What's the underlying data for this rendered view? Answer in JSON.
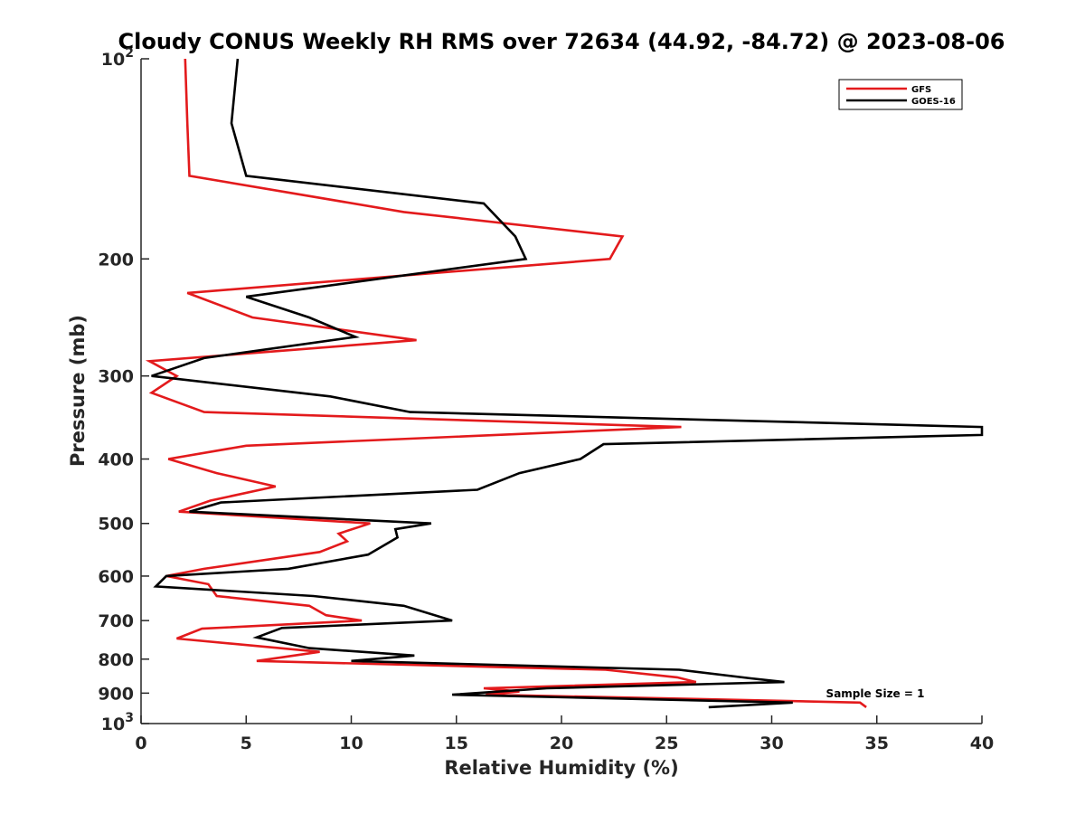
{
  "chart_data": {
    "type": "line",
    "title": "Cloudy CONUS Weekly RH RMS over 72634 (44.92, -84.72) @ 2023-08-06",
    "xlabel": "Relative Humidity (%)",
    "ylabel": "Pressure (mb)",
    "xlim": [
      0,
      40
    ],
    "ylim": [
      100,
      1000
    ],
    "y_scale": "log",
    "y_reversed": true,
    "x_ticks": [
      0,
      5,
      10,
      15,
      20,
      25,
      30,
      35,
      40
    ],
    "x_tick_labels": [
      "0",
      "5",
      "10",
      "15",
      "20",
      "25",
      "30",
      "35",
      "40"
    ],
    "y_ticks": [
      100,
      200,
      300,
      400,
      500,
      600,
      700,
      800,
      900,
      1000
    ],
    "y_tick_labels": [
      {
        "base": "10",
        "exp": "2"
      },
      {
        "base": "200",
        "exp": ""
      },
      {
        "base": "300",
        "exp": ""
      },
      {
        "base": "400",
        "exp": ""
      },
      {
        "base": "500",
        "exp": ""
      },
      {
        "base": "600",
        "exp": ""
      },
      {
        "base": "700",
        "exp": ""
      },
      {
        "base": "800",
        "exp": ""
      },
      {
        "base": "900",
        "exp": ""
      },
      {
        "base": "10",
        "exp": "3"
      }
    ],
    "grid": false,
    "legend_position": "top-right",
    "annotation": "Sample Size = 1",
    "series": [
      {
        "name": "GFS",
        "color": "#e31a1c",
        "points": [
          {
            "x": 2.1,
            "p": 100
          },
          {
            "x": 2.2,
            "p": 125
          },
          {
            "x": 2.3,
            "p": 150
          },
          {
            "x": 12.5,
            "p": 170
          },
          {
            "x": 22.9,
            "p": 185
          },
          {
            "x": 22.3,
            "p": 200
          },
          {
            "x": 2.2,
            "p": 225
          },
          {
            "x": 5.3,
            "p": 245
          },
          {
            "x": 13.1,
            "p": 265
          },
          {
            "x": 0.4,
            "p": 285
          },
          {
            "x": 1.7,
            "p": 300
          },
          {
            "x": 0.5,
            "p": 318
          },
          {
            "x": 3.0,
            "p": 340
          },
          {
            "x": 25.7,
            "p": 358
          },
          {
            "x": 5.0,
            "p": 382
          },
          {
            "x": 1.3,
            "p": 400
          },
          {
            "x": 3.6,
            "p": 420
          },
          {
            "x": 6.4,
            "p": 440
          },
          {
            "x": 3.3,
            "p": 462
          },
          {
            "x": 1.8,
            "p": 480
          },
          {
            "x": 10.9,
            "p": 500
          },
          {
            "x": 9.4,
            "p": 518
          },
          {
            "x": 9.8,
            "p": 532
          },
          {
            "x": 8.5,
            "p": 552
          },
          {
            "x": 3.0,
            "p": 585
          },
          {
            "x": 1.2,
            "p": 600
          },
          {
            "x": 3.2,
            "p": 617
          },
          {
            "x": 3.6,
            "p": 643
          },
          {
            "x": 8.0,
            "p": 665
          },
          {
            "x": 8.8,
            "p": 687
          },
          {
            "x": 10.5,
            "p": 700
          },
          {
            "x": 2.9,
            "p": 720
          },
          {
            "x": 1.7,
            "p": 745
          },
          {
            "x": 8.5,
            "p": 780
          },
          {
            "x": 5.5,
            "p": 805
          },
          {
            "x": 22.1,
            "p": 830
          },
          {
            "x": 25.5,
            "p": 852
          },
          {
            "x": 26.4,
            "p": 866
          },
          {
            "x": 16.3,
            "p": 885
          },
          {
            "x": 18.0,
            "p": 895
          },
          {
            "x": 16.4,
            "p": 905
          },
          {
            "x": 26.1,
            "p": 918
          },
          {
            "x": 34.2,
            "p": 930
          },
          {
            "x": 34.5,
            "p": 945
          }
        ]
      },
      {
        "name": "GOES-16",
        "color": "#000000",
        "points": [
          {
            "x": 4.6,
            "p": 100
          },
          {
            "x": 4.3,
            "p": 125
          },
          {
            "x": 5.0,
            "p": 150
          },
          {
            "x": 16.3,
            "p": 165
          },
          {
            "x": 17.8,
            "p": 185
          },
          {
            "x": 18.3,
            "p": 200
          },
          {
            "x": 5.0,
            "p": 228
          },
          {
            "x": 8.0,
            "p": 245
          },
          {
            "x": 10.2,
            "p": 262
          },
          {
            "x": 3.0,
            "p": 282
          },
          {
            "x": 0.5,
            "p": 300
          },
          {
            "x": 9.0,
            "p": 322
          },
          {
            "x": 12.8,
            "p": 340
          },
          {
            "x": 40,
            "p": 358
          },
          {
            "x": 40,
            "p": 368
          },
          {
            "x": 22.0,
            "p": 380
          },
          {
            "x": 20.9,
            "p": 400
          },
          {
            "x": 18.0,
            "p": 420
          },
          {
            "x": 16.0,
            "p": 445
          },
          {
            "x": 3.8,
            "p": 465
          },
          {
            "x": 2.3,
            "p": 480
          },
          {
            "x": 13.8,
            "p": 500
          },
          {
            "x": 12.1,
            "p": 510
          },
          {
            "x": 12.2,
            "p": 525
          },
          {
            "x": 10.8,
            "p": 557
          },
          {
            "x": 7.0,
            "p": 585
          },
          {
            "x": 1.2,
            "p": 600
          },
          {
            "x": 0.7,
            "p": 622
          },
          {
            "x": 8.2,
            "p": 643
          },
          {
            "x": 12.5,
            "p": 665
          },
          {
            "x": 14.8,
            "p": 700
          },
          {
            "x": 6.7,
            "p": 718
          },
          {
            "x": 5.5,
            "p": 742
          },
          {
            "x": 8.0,
            "p": 770
          },
          {
            "x": 13.0,
            "p": 790
          },
          {
            "x": 10.0,
            "p": 805
          },
          {
            "x": 25.6,
            "p": 830
          },
          {
            "x": 29.0,
            "p": 855
          },
          {
            "x": 30.6,
            "p": 866
          },
          {
            "x": 19.3,
            "p": 885
          },
          {
            "x": 14.8,
            "p": 905
          },
          {
            "x": 31.0,
            "p": 930
          },
          {
            "x": 27.0,
            "p": 945
          }
        ]
      }
    ]
  }
}
